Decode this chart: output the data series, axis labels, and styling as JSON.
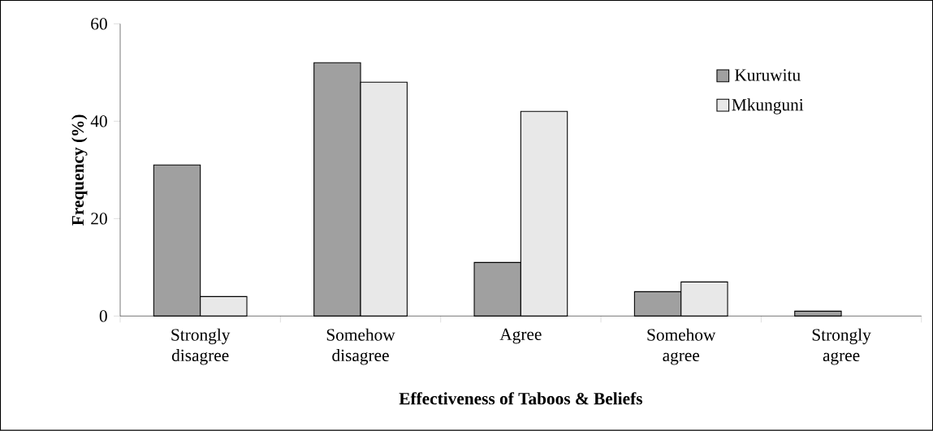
{
  "chart_data": {
    "type": "bar",
    "xlabel": "Effectiveness of Taboos & Beliefs",
    "ylabel": "Frequency (%)",
    "categories": [
      "Strongly disagree",
      "Somehow disagree",
      "Agree",
      "Somehow agree",
      "Strongly agree"
    ],
    "series": [
      {
        "name": "Kuruwitu",
        "color": "#a0a0a0",
        "values": [
          31,
          52,
          11,
          5,
          1
        ]
      },
      {
        "name": "Mkunguni",
        "color": "#e8e8e8",
        "values": [
          4,
          48,
          42,
          7,
          null
        ]
      }
    ],
    "ylim": [
      0,
      60
    ],
    "yticks": [
      0,
      20,
      40,
      60
    ],
    "legend": "top right"
  }
}
